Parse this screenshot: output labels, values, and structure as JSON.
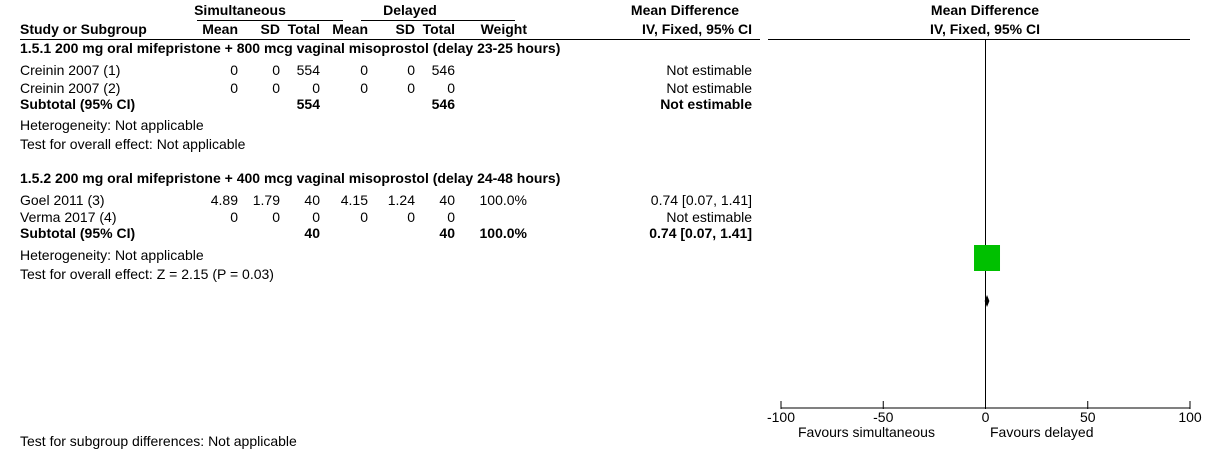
{
  "header": {
    "group1": "Simultaneous",
    "group2": "Delayed",
    "effect_title": "Mean Difference",
    "plot_title": "Mean Difference",
    "plot_method": "IV, Fixed, 95% CI",
    "cols": {
      "study": "Study or Subgroup",
      "mean1": "Mean",
      "sd1": "SD",
      "total1": "Total",
      "mean2": "Mean",
      "sd2": "SD",
      "total2": "Total",
      "weight": "Weight",
      "method": "IV, Fixed, 95% CI"
    }
  },
  "subgroups": [
    {
      "title": "1.5.1 200 mg oral mifepristone + 800 mcg vaginal misoprostol (delay 23-25 hours)",
      "rows": [
        {
          "study": "Creinin 2007 (1)",
          "mean1": "0",
          "sd1": "0",
          "total1": "554",
          "mean2": "0",
          "sd2": "0",
          "total2": "546",
          "weight": "",
          "effect": "Not estimable"
        },
        {
          "study": "Creinin 2007 (2)",
          "mean1": "0",
          "sd1": "0",
          "total1": "0",
          "mean2": "0",
          "sd2": "0",
          "total2": "0",
          "weight": "",
          "effect": "Not estimable"
        }
      ],
      "subtotal": {
        "label": "Subtotal (95% CI)",
        "total1": "554",
        "total2": "546",
        "weight": "",
        "effect": "Not estimable"
      },
      "heterogeneity": "Heterogeneity: Not applicable",
      "overall": "Test for overall effect: Not applicable"
    },
    {
      "title": "1.5.2 200 mg oral mifepristone + 400 mcg vaginal misoprostol (delay 24-48 hours)",
      "rows": [
        {
          "study": "Goel 2011 (3)",
          "mean1": "4.89",
          "sd1": "1.79",
          "total1": "40",
          "mean2": "4.15",
          "sd2": "1.24",
          "total2": "40",
          "weight": "100.0%",
          "effect": "0.74 [0.07, 1.41]"
        },
        {
          "study": "Verma 2017 (4)",
          "mean1": "0",
          "sd1": "0",
          "total1": "0",
          "mean2": "0",
          "sd2": "0",
          "total2": "0",
          "weight": "",
          "effect": "Not estimable"
        }
      ],
      "subtotal": {
        "label": "Subtotal (95% CI)",
        "total1": "40",
        "total2": "40",
        "weight": "100.0%",
        "effect": "0.74 [0.07, 1.41]"
      },
      "heterogeneity": "Heterogeneity: Not applicable",
      "overall": "Test for overall effect: Z = 2.15 (P = 0.03)"
    }
  ],
  "footer_partial": "Test for subgroup differences: Not applicable",
  "chart_data": {
    "type": "forest",
    "xlim": [
      -100,
      100
    ],
    "ticks": [
      -100,
      -50,
      0,
      50,
      100
    ],
    "tick_labels": [
      "-100",
      "-50",
      "0",
      "50",
      "100"
    ],
    "favours_left": "Favours simultaneous",
    "favours_right": "Favours delayed",
    "studies": [
      {
        "name": "Goel 2011 (3)",
        "estimate": 0.74,
        "ci": [
          0.07,
          1.41
        ],
        "weight": 100.0
      }
    ],
    "subtotals": [
      {
        "name": "Subtotal (95% CI)",
        "estimate": 0.74,
        "ci": [
          0.07,
          1.41
        ]
      }
    ],
    "colors": {
      "study_box": "#00c000",
      "diamond": "#000000",
      "axis": "#000000"
    }
  }
}
